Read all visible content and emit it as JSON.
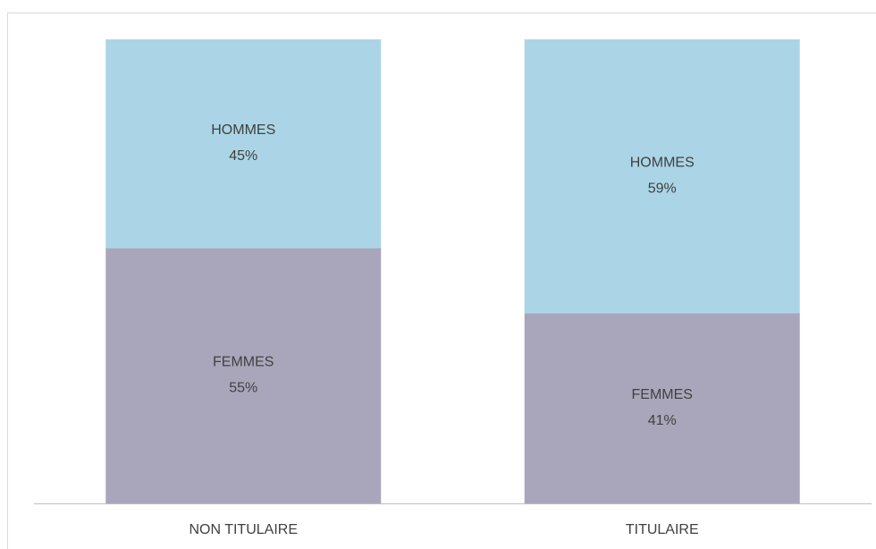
{
  "chart_data": {
    "type": "stacked_bar",
    "categories": [
      "NON TITULAIRE",
      "TITULAIRE"
    ],
    "series": [
      {
        "name": "FEMMES",
        "color": "#a9a6bb",
        "values": [
          55,
          41
        ],
        "value_labels": [
          "55%",
          "41%"
        ]
      },
      {
        "name": "HOMMES",
        "color": "#abd5e6",
        "values": [
          45,
          59
        ],
        "value_labels": [
          "45%",
          "59%"
        ]
      }
    ],
    "ylim": [
      0,
      100
    ]
  }
}
